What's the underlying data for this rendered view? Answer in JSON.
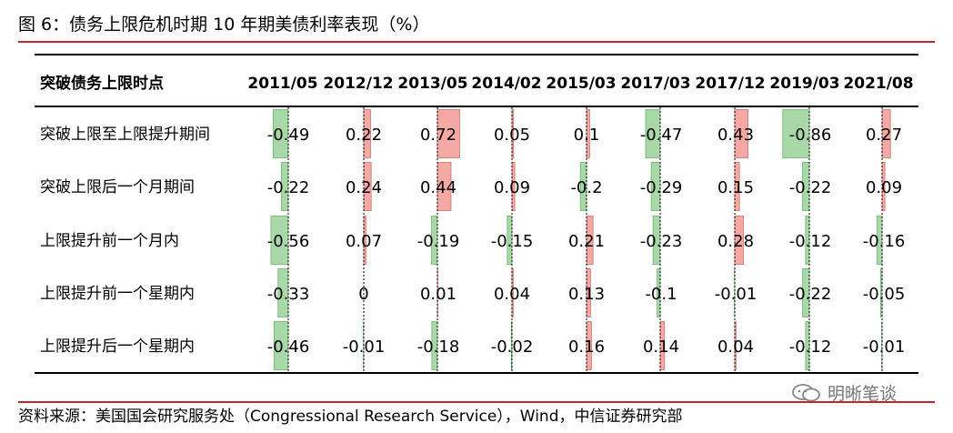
{
  "title": "图 6：债务上限危机时期 10 年期美债利率表现（%）",
  "source": "资料来源：美国国会研究服务处（Congressional Research Service），Wind，中信证券研究部",
  "watermark": "明晰笔谈",
  "colors": {
    "accent": "#c0272d",
    "positive": "#f4a9a4",
    "negative": "#a8d8a8"
  },
  "chart_data": {
    "type": "table",
    "row_header": "突破债务上限时点",
    "categories": [
      "2011/05",
      "2012/12",
      "2013/05",
      "2014/02",
      "2015/03",
      "2017/03",
      "2017/12",
      "2019/03",
      "2021/08"
    ],
    "series": [
      {
        "name": "突破上限至上限提升期间",
        "values": [
          -0.49,
          0.22,
          0.72,
          0.05,
          0.1,
          -0.47,
          0.43,
          -0.86,
          0.27
        ],
        "labels": [
          "-0.49",
          "0.22",
          "0.72",
          "0.05",
          "0.1",
          "-0.47",
          "0.43",
          "-0.86",
          "0.27"
        ]
      },
      {
        "name": "突破上限后一个月期间",
        "values": [
          -0.22,
          0.24,
          0.44,
          0.09,
          -0.2,
          -0.29,
          0.15,
          -0.22,
          0.09
        ],
        "labels": [
          "-0.22",
          "0.24",
          "0.44",
          "0.09",
          "-0.2",
          "-0.29",
          "0.15",
          "-0.22",
          "0.09"
        ]
      },
      {
        "name": "上限提升前一个月内",
        "values": [
          -0.56,
          0.07,
          -0.19,
          -0.15,
          0.21,
          -0.23,
          0.28,
          -0.12,
          -0.16
        ],
        "labels": [
          "-0.56",
          "0.07",
          "-0.19",
          "-0.15",
          "0.21",
          "-0.23",
          "0.28",
          "-0.12",
          "-0.16"
        ]
      },
      {
        "name": "上限提升前一个星期内",
        "values": [
          -0.33,
          0,
          0.01,
          0.04,
          0.13,
          -0.1,
          -0.01,
          -0.22,
          -0.05
        ],
        "labels": [
          "-0.33",
          "0",
          "0.01",
          "0.04",
          "0.13",
          "-0.1",
          "-0.01",
          "-0.22",
          "-0.05"
        ]
      },
      {
        "name": "上限提升后一个星期内",
        "values": [
          -0.46,
          -0.01,
          -0.18,
          -0.02,
          0.16,
          0.14,
          0.04,
          -0.12,
          -0.01
        ],
        "labels": [
          "-0.46",
          "-0.01",
          "-0.18",
          "-0.02",
          "0.16",
          "0.14",
          "0.04",
          "-0.12",
          "-0.01"
        ]
      }
    ]
  }
}
